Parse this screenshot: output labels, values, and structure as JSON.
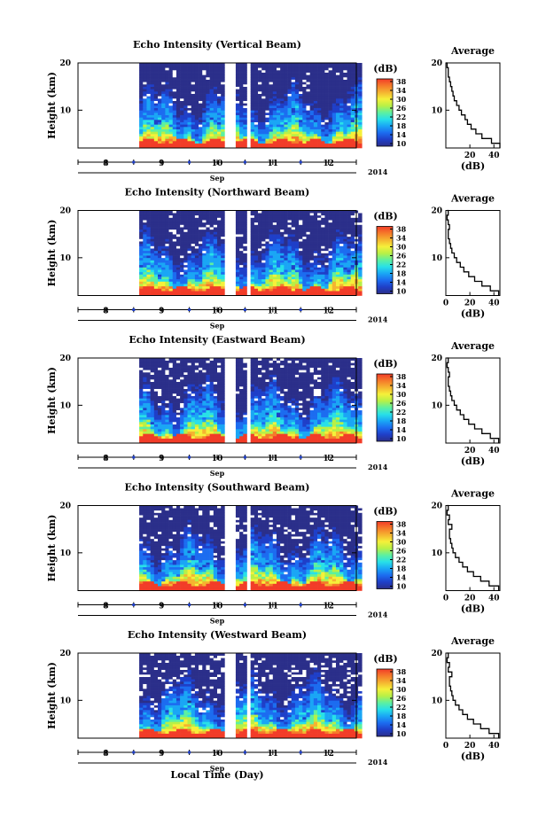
{
  "chart_data": {
    "type": "heatmap",
    "xlabel": "Local Time (Day)",
    "month_label": "Sep",
    "year_label": "2014",
    "day_ticks": [
      "8",
      "9",
      "10",
      "11",
      "12"
    ],
    "height_label": "Height (km)",
    "height_ticks": [
      "20",
      "10"
    ],
    "height_range_km": [
      2,
      20
    ],
    "data_start_day": 8.6,
    "data_end_day": 12.6,
    "gaps_day": [
      [
        10.15,
        10.35
      ],
      [
        10.55,
        10.62
      ]
    ],
    "colorbar": {
      "unit_label": "(dB)",
      "ticks": [
        "38",
        "34",
        "30",
        "26",
        "22",
        "18",
        "14",
        "10"
      ],
      "range_db": [
        10,
        38
      ],
      "colors": [
        "#2b2f8a",
        "#1f3fc8",
        "#1c6cf0",
        "#1aa6f5",
        "#28e0e8",
        "#5df0a0",
        "#b8f046",
        "#f5f03a",
        "#f5b430",
        "#f57a2a",
        "#f23c28"
      ]
    },
    "panels": [
      {
        "title": "Echo Intensity (Vertical Beam)",
        "avg_title": "Average",
        "avg_xlabel": "(dB)",
        "avg_xticks": [
          "20",
          "40"
        ],
        "avg_xrange": [
          0,
          45
        ],
        "avg_profile": [
          [
            45,
            2
          ],
          [
            38,
            3
          ],
          [
            30,
            4
          ],
          [
            25,
            5
          ],
          [
            21,
            6
          ],
          [
            18,
            7
          ],
          [
            16,
            8
          ],
          [
            13,
            9
          ],
          [
            11,
            10
          ],
          [
            9,
            11
          ],
          [
            7,
            12
          ],
          [
            6,
            13
          ],
          [
            5,
            14
          ],
          [
            4,
            15
          ],
          [
            3,
            16
          ],
          [
            2,
            17
          ],
          [
            2,
            18
          ],
          [
            1,
            19
          ],
          [
            0,
            20
          ]
        ]
      },
      {
        "title": "Echo Intensity (Northward Beam)",
        "avg_title": "Average",
        "avg_xlabel": "(dB)",
        "avg_xticks": [
          "0",
          "20",
          "40"
        ],
        "avg_xrange": [
          0,
          45
        ],
        "avg_profile": [
          [
            44,
            2
          ],
          [
            37,
            3
          ],
          [
            30,
            4
          ],
          [
            24,
            5
          ],
          [
            19,
            6
          ],
          [
            15,
            7
          ],
          [
            12,
            8
          ],
          [
            9,
            9
          ],
          [
            7,
            10
          ],
          [
            5,
            11
          ],
          [
            4,
            12
          ],
          [
            3,
            13
          ],
          [
            2,
            14
          ],
          [
            2,
            15
          ],
          [
            3,
            16
          ],
          [
            2,
            17
          ],
          [
            1,
            18
          ],
          [
            2,
            19
          ],
          [
            1,
            20
          ]
        ]
      },
      {
        "title": "Echo Intensity (Eastward Beam)",
        "avg_title": "Average",
        "avg_xlabel": "(dB)",
        "avg_xticks": [
          "20",
          "40"
        ],
        "avg_xrange": [
          0,
          45
        ],
        "avg_profile": [
          [
            44,
            2
          ],
          [
            37,
            3
          ],
          [
            30,
            4
          ],
          [
            24,
            5
          ],
          [
            19,
            6
          ],
          [
            15,
            7
          ],
          [
            12,
            8
          ],
          [
            9,
            9
          ],
          [
            7,
            10
          ],
          [
            5,
            11
          ],
          [
            4,
            12
          ],
          [
            3,
            13
          ],
          [
            2,
            14
          ],
          [
            2,
            15
          ],
          [
            3,
            16
          ],
          [
            2,
            17
          ],
          [
            1,
            18
          ],
          [
            2,
            19
          ],
          [
            1,
            20
          ]
        ]
      },
      {
        "title": "Echo Intensity (Southward Beam)",
        "avg_title": "Average",
        "avg_xlabel": "(dB)",
        "avg_xticks": [
          "0",
          "20",
          "40"
        ],
        "avg_xrange": [
          0,
          45
        ],
        "avg_profile": [
          [
            44,
            2
          ],
          [
            36,
            3
          ],
          [
            29,
            4
          ],
          [
            23,
            5
          ],
          [
            18,
            6
          ],
          [
            14,
            7
          ],
          [
            11,
            8
          ],
          [
            8,
            9
          ],
          [
            6,
            10
          ],
          [
            5,
            11
          ],
          [
            4,
            12
          ],
          [
            3,
            13
          ],
          [
            3,
            14
          ],
          [
            5,
            15
          ],
          [
            2,
            16
          ],
          [
            3,
            17
          ],
          [
            1,
            18
          ],
          [
            2,
            19
          ],
          [
            1,
            20
          ]
        ]
      },
      {
        "title": "Echo Intensity (Westward Beam)",
        "avg_title": "Average",
        "avg_xlabel": "(dB)",
        "avg_xticks": [
          "0",
          "20",
          "40"
        ],
        "avg_xrange": [
          0,
          45
        ],
        "avg_profile": [
          [
            44,
            2
          ],
          [
            36,
            3
          ],
          [
            29,
            4
          ],
          [
            23,
            5
          ],
          [
            18,
            6
          ],
          [
            14,
            7
          ],
          [
            11,
            8
          ],
          [
            8,
            9
          ],
          [
            6,
            10
          ],
          [
            5,
            11
          ],
          [
            4,
            12
          ],
          [
            3,
            13
          ],
          [
            3,
            14
          ],
          [
            5,
            15
          ],
          [
            2,
            16
          ],
          [
            3,
            17
          ],
          [
            1,
            18
          ],
          [
            2,
            19
          ],
          [
            1,
            20
          ]
        ]
      }
    ]
  }
}
